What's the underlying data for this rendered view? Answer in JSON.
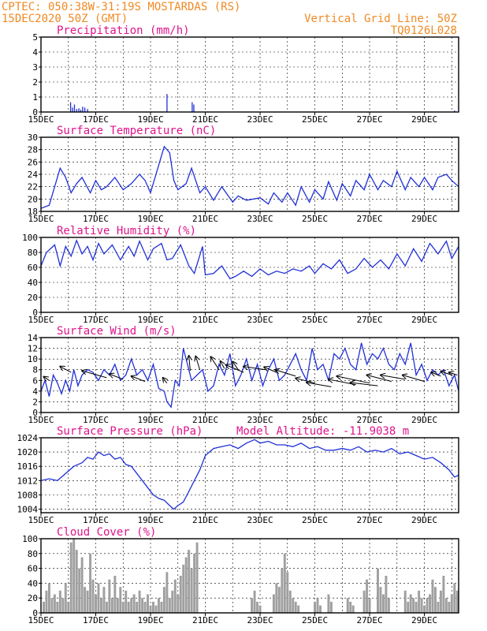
{
  "header": {
    "line1_left": "CPTEC:   050:38W-31:19S   MOSTARDAS (RS)",
    "line2_left": "15DEC2020 50Z (GMT)",
    "line1_right": "Vertical Grid Line: 50Z",
    "line2_right": "TQ0126L028"
  },
  "colors": {
    "header": "#f08a24",
    "title": "#e0148c",
    "line": "#2030d8",
    "cloud": "#a0a0a0"
  },
  "x_axis": {
    "labels": [
      "15DEC",
      "17DEC",
      "19DEC",
      "21DEC",
      "23DEC",
      "25DEC",
      "27DEC",
      "29DEC"
    ],
    "label_days": [
      0,
      2,
      4,
      6,
      8,
      10,
      12,
      14
    ],
    "total_days": 15.25,
    "grid_days": [
      1,
      2,
      3,
      4,
      5,
      6,
      7,
      8,
      9,
      10,
      11,
      12,
      13,
      14,
      15
    ]
  },
  "chart_data": [
    {
      "type": "bar",
      "title": "Precipitation (mm/h)",
      "ylim": [
        0,
        5
      ],
      "yticks": [
        0,
        1,
        2,
        3,
        4,
        5
      ],
      "series": [
        {
          "x": [
            1.08,
            1.15,
            1.22,
            1.3,
            1.38,
            1.45,
            1.52,
            1.6,
            1.7,
            4.6,
            5.52,
            5.58,
            15.1
          ],
          "values": [
            0.65,
            0.3,
            0.5,
            0.2,
            0.25,
            0.15,
            0.35,
            0.3,
            0.2,
            1.2,
            0.65,
            0.5,
            0.1
          ]
        }
      ]
    },
    {
      "type": "line",
      "title": "Surface Temperature (nC)",
      "ylim": [
        18,
        30
      ],
      "yticks": [
        18,
        20,
        22,
        24,
        26,
        28,
        30
      ],
      "series": [
        {
          "x": [
            0,
            0.3,
            0.5,
            0.7,
            0.9,
            1.1,
            1.3,
            1.5,
            1.8,
            2.0,
            2.2,
            2.4,
            2.7,
            3.0,
            3.3,
            3.6,
            3.8,
            4.0,
            4.3,
            4.5,
            4.7,
            4.85,
            5.0,
            5.3,
            5.5,
            5.8,
            6.0,
            6.3,
            6.6,
            7.0,
            7.2,
            7.5,
            8.0,
            8.3,
            8.5,
            8.8,
            9.0,
            9.3,
            9.5,
            9.8,
            10.0,
            10.3,
            10.5,
            10.8,
            11.0,
            11.3,
            11.5,
            11.8,
            12.0,
            12.3,
            12.5,
            12.8,
            13.0,
            13.3,
            13.5,
            13.8,
            14.0,
            14.3,
            14.5,
            14.8,
            15.0,
            15.25
          ],
          "values": [
            18.5,
            19.0,
            22.0,
            25.0,
            23.5,
            21.0,
            22.5,
            23.5,
            21.0,
            23.0,
            21.5,
            22.0,
            23.5,
            21.5,
            22.5,
            24.0,
            23.0,
            21.0,
            25.5,
            28.5,
            27.5,
            23.0,
            21.5,
            22.5,
            25.0,
            21.0,
            22.0,
            19.8,
            22.0,
            19.5,
            20.5,
            19.8,
            20.2,
            19.2,
            21.0,
            19.5,
            21.0,
            19.0,
            22.0,
            19.5,
            21.5,
            20.0,
            22.8,
            19.8,
            22.5,
            20.5,
            23.0,
            21.5,
            24.0,
            21.5,
            23.0,
            22.0,
            24.5,
            21.5,
            23.5,
            22.0,
            23.5,
            21.5,
            23.5,
            24.0,
            23.0,
            22.0
          ]
        }
      ]
    },
    {
      "type": "line",
      "title": "Relative Humidity (%)",
      "ylim": [
        0,
        100
      ],
      "yticks": [
        0,
        20,
        40,
        60,
        80,
        100
      ],
      "series": [
        {
          "x": [
            0,
            0.2,
            0.5,
            0.7,
            0.9,
            1.1,
            1.3,
            1.5,
            1.7,
            1.9,
            2.1,
            2.3,
            2.6,
            2.9,
            3.2,
            3.4,
            3.6,
            3.9,
            4.1,
            4.4,
            4.6,
            4.8,
            5.1,
            5.4,
            5.6,
            5.9,
            6.0,
            6.3,
            6.6,
            6.9,
            7.1,
            7.4,
            7.7,
            8.0,
            8.3,
            8.6,
            8.9,
            9.2,
            9.5,
            9.8,
            10.0,
            10.3,
            10.6,
            10.9,
            11.2,
            11.5,
            11.8,
            12.1,
            12.4,
            12.7,
            13.0,
            13.3,
            13.6,
            13.9,
            14.2,
            14.5,
            14.8,
            15.0,
            15.25
          ],
          "values": [
            62,
            80,
            90,
            62,
            88,
            75,
            96,
            78,
            88,
            70,
            92,
            78,
            90,
            70,
            88,
            75,
            95,
            70,
            85,
            92,
            70,
            72,
            90,
            62,
            52,
            88,
            50,
            52,
            62,
            45,
            48,
            55,
            48,
            58,
            50,
            55,
            52,
            58,
            55,
            62,
            52,
            65,
            58,
            70,
            52,
            58,
            72,
            60,
            70,
            58,
            78,
            62,
            85,
            68,
            92,
            78,
            95,
            72,
            88
          ]
        }
      ]
    },
    {
      "type": "line",
      "title": "Surface Wind (m/s)",
      "ylim": [
        0,
        14
      ],
      "yticks": [
        0,
        2,
        4,
        6,
        8,
        10,
        12,
        14
      ],
      "series": [
        {
          "x": [
            0,
            0.15,
            0.3,
            0.45,
            0.6,
            0.75,
            0.9,
            1.05,
            1.2,
            1.35,
            1.5,
            1.7,
            1.9,
            2.1,
            2.3,
            2.5,
            2.7,
            2.9,
            3.1,
            3.3,
            3.5,
            3.7,
            3.9,
            4.1,
            4.3,
            4.5,
            4.6,
            4.75,
            4.9,
            5.05,
            5.2,
            5.35,
            5.5,
            5.7,
            5.9,
            6.1,
            6.3,
            6.5,
            6.7,
            6.9,
            7.1,
            7.3,
            7.5,
            7.7,
            7.9,
            8.1,
            8.3,
            8.5,
            8.7,
            8.9,
            9.1,
            9.3,
            9.5,
            9.7,
            9.9,
            10.1,
            10.3,
            10.5,
            10.7,
            10.9,
            11.1,
            11.3,
            11.5,
            11.7,
            11.9,
            12.1,
            12.3,
            12.5,
            12.7,
            12.9,
            13.1,
            13.3,
            13.5,
            13.7,
            13.9,
            14.1,
            14.3,
            14.5,
            14.7,
            14.9,
            15.1,
            15.25
          ],
          "values": [
            4,
            6,
            3,
            7,
            5.5,
            3.5,
            6,
            4,
            8,
            5,
            7,
            8,
            7.5,
            6,
            8,
            7,
            9,
            6,
            7,
            10,
            7,
            8,
            6,
            9,
            4.5,
            4,
            2,
            1,
            6,
            5,
            12,
            9,
            6,
            7,
            8,
            4,
            5,
            9,
            7,
            11,
            5,
            7,
            10,
            6,
            9,
            5,
            8,
            10,
            6,
            7,
            9,
            11,
            8,
            6,
            12,
            8,
            9,
            6,
            11,
            10,
            12,
            9,
            8,
            13,
            9,
            11,
            10,
            12,
            9,
            8,
            11,
            9,
            13,
            7,
            9,
            6,
            8,
            7,
            8,
            5,
            7,
            4
          ]
        }
      ],
      "arrows": [
        [
          0.3,
          6,
          0.1,
          6.7
        ],
        [
          1.1,
          7.5,
          0.7,
          8.6
        ],
        [
          2.4,
          6.5,
          1.5,
          7.8
        ],
        [
          3.0,
          6.2,
          2.5,
          7.2
        ],
        [
          3.8,
          5.8,
          3.3,
          6.8
        ],
        [
          4.6,
          5.5,
          4.45,
          6.5
        ],
        [
          5.45,
          7.8,
          5.4,
          10.6
        ],
        [
          5.8,
          8.0,
          5.65,
          10.5
        ],
        [
          6.5,
          8.0,
          6.2,
          10.4
        ],
        [
          6.7,
          8.2,
          6.55,
          9.6
        ],
        [
          7.2,
          8.0,
          7.0,
          9.5
        ],
        [
          7.4,
          7.5,
          6.75,
          8.9
        ],
        [
          8.2,
          8.0,
          7.4,
          8.6
        ],
        [
          8.6,
          7.5,
          8.15,
          8.5
        ],
        [
          9.3,
          6.8,
          8.55,
          8.0
        ],
        [
          10.0,
          5.5,
          9.3,
          6.4
        ],
        [
          10.6,
          4.8,
          9.7,
          5.6
        ],
        [
          11.5,
          5.2,
          10.5,
          6.2
        ],
        [
          12.0,
          5.5,
          10.8,
          6.8
        ],
        [
          12.3,
          5.0,
          11.3,
          5.6
        ],
        [
          12.8,
          5.8,
          11.9,
          7.0
        ],
        [
          13.3,
          6.2,
          12.4,
          7.0
        ],
        [
          14.0,
          5.8,
          13.2,
          7.0
        ],
        [
          14.6,
          6.8,
          14.25,
          7.5
        ],
        [
          15.0,
          7.0,
          14.6,
          7.7
        ],
        [
          15.2,
          7.0,
          14.9,
          7.5
        ]
      ]
    },
    {
      "type": "line",
      "title": "Surface Pressure (hPa)",
      "annotation": "Model Altitude: -11.9038 m",
      "ylim": [
        1003,
        1024
      ],
      "yticks": [
        1004,
        1008,
        1012,
        1016,
        1020,
        1024
      ],
      "series": [
        {
          "x": [
            0,
            0.3,
            0.6,
            0.9,
            1.2,
            1.5,
            1.7,
            1.9,
            2.1,
            2.3,
            2.5,
            2.7,
            2.9,
            3.1,
            3.3,
            3.5,
            3.7,
            3.9,
            4.1,
            4.3,
            4.5,
            4.7,
            4.85,
            5.0,
            5.2,
            5.4,
            5.6,
            5.8,
            6.0,
            6.3,
            6.6,
            6.9,
            7.2,
            7.5,
            7.8,
            8.0,
            8.3,
            8.6,
            8.9,
            9.2,
            9.5,
            9.8,
            10.1,
            10.4,
            10.7,
            11.0,
            11.3,
            11.6,
            11.9,
            12.2,
            12.5,
            12.8,
            13.1,
            13.4,
            13.7,
            14.0,
            14.3,
            14.6,
            14.9,
            15.1,
            15.25
          ],
          "values": [
            1012,
            1012.5,
            1012,
            1014,
            1016,
            1017,
            1018.5,
            1018,
            1020,
            1019,
            1019.5,
            1018,
            1018.5,
            1016.5,
            1016,
            1014,
            1012,
            1010,
            1008,
            1007,
            1006.5,
            1005,
            1004,
            1005,
            1006,
            1009,
            1012,
            1015,
            1019,
            1021,
            1021.5,
            1022,
            1021,
            1022.5,
            1023.5,
            1022.5,
            1023,
            1022,
            1022,
            1021.5,
            1022.5,
            1021,
            1021.5,
            1020.5,
            1020.5,
            1021,
            1020.5,
            1021.5,
            1020,
            1020.5,
            1020,
            1021,
            1019.5,
            1020,
            1019,
            1018,
            1018.5,
            1017,
            1015,
            1013,
            1013.5
          ]
        }
      ]
    },
    {
      "type": "bar",
      "title": "Cloud Cover (%)",
      "ylim": [
        0,
        100
      ],
      "yticks": [
        0,
        20,
        40,
        60,
        80,
        100
      ],
      "series": [
        {
          "x": [
            0.1,
            0.2,
            0.3,
            0.4,
            0.5,
            0.6,
            0.7,
            0.8,
            0.9,
            1.0,
            1.1,
            1.2,
            1.3,
            1.4,
            1.5,
            1.6,
            1.7,
            1.8,
            1.9,
            2.0,
            2.1,
            2.2,
            2.3,
            2.4,
            2.5,
            2.6,
            2.7,
            2.8,
            2.9,
            3.0,
            3.1,
            3.2,
            3.3,
            3.4,
            3.5,
            3.6,
            3.7,
            3.8,
            3.9,
            4.0,
            4.1,
            4.2,
            4.3,
            4.4,
            4.5,
            4.6,
            4.7,
            4.8,
            4.9,
            5.0,
            5.1,
            5.2,
            5.3,
            5.4,
            5.5,
            5.6,
            5.7,
            7.7,
            7.8,
            7.9,
            8.0,
            8.5,
            8.6,
            8.7,
            8.8,
            8.9,
            9.0,
            9.1,
            9.2,
            9.3,
            9.4,
            10.0,
            10.1,
            10.2,
            10.5,
            10.6,
            11.2,
            11.3,
            11.4,
            11.8,
            11.9,
            12.0,
            12.3,
            12.4,
            12.5,
            12.6,
            12.7,
            13.3,
            13.4,
            13.5,
            13.6,
            13.7,
            13.8,
            13.9,
            14.0,
            14.1,
            14.2,
            14.3,
            14.4,
            14.5,
            14.6,
            14.7,
            14.8,
            14.9,
            15.0,
            15.1,
            15.2
          ],
          "values": [
            15,
            30,
            40,
            20,
            25,
            15,
            30,
            20,
            40,
            15,
            95,
            100,
            85,
            60,
            75,
            35,
            30,
            80,
            45,
            25,
            40,
            20,
            35,
            15,
            45,
            20,
            50,
            20,
            35,
            15,
            30,
            15,
            20,
            25,
            15,
            30,
            20,
            15,
            25,
            10,
            15,
            10,
            20,
            15,
            35,
            55,
            20,
            30,
            45,
            25,
            50,
            65,
            75,
            85,
            60,
            80,
            95,
            20,
            30,
            15,
            10,
            25,
            40,
            35,
            60,
            80,
            55,
            30,
            20,
            15,
            10,
            15,
            20,
            10,
            25,
            15,
            20,
            15,
            10,
            30,
            45,
            20,
            60,
            35,
            25,
            50,
            20,
            30,
            15,
            25,
            20,
            15,
            30,
            20,
            10,
            20,
            25,
            45,
            35,
            15,
            30,
            50,
            20,
            15,
            25,
            40,
            30
          ]
        }
      ]
    }
  ]
}
